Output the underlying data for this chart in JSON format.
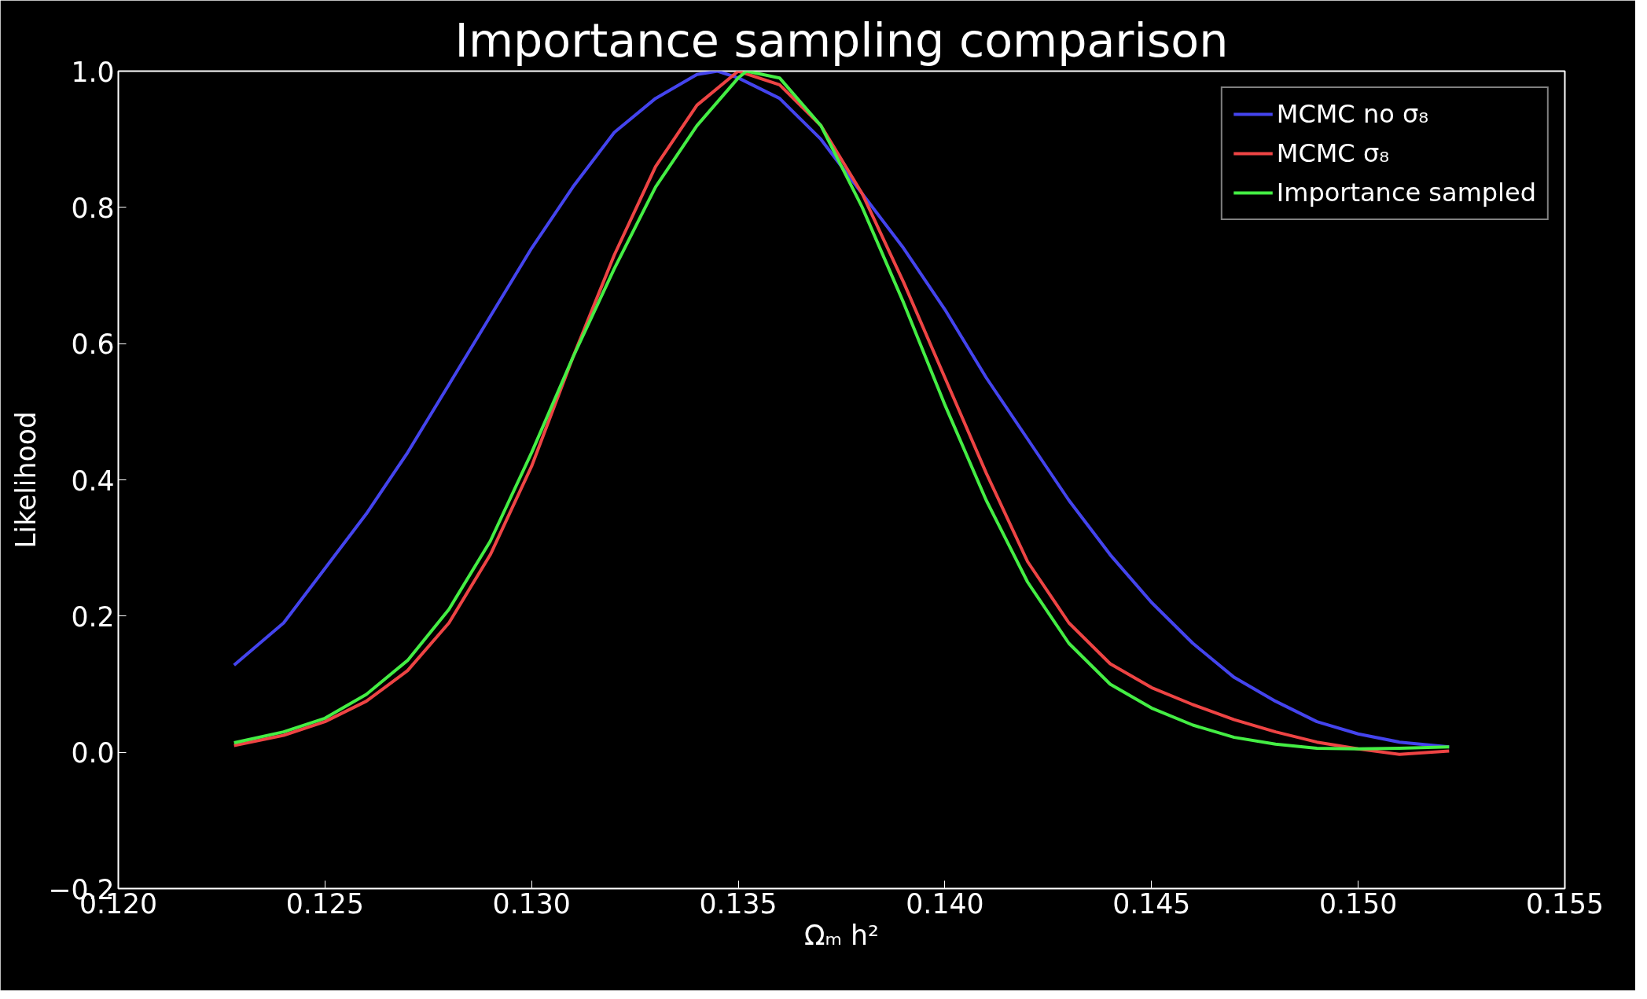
{
  "chart_data": {
    "type": "line",
    "title": "Importance sampling comparison",
    "xlabel": "Ωₘ h²",
    "ylabel": "Likelihood",
    "xlim": [
      0.12,
      0.155
    ],
    "ylim": [
      -0.2,
      1.0
    ],
    "xticks": [
      {
        "value": 0.12,
        "label": "0.120"
      },
      {
        "value": 0.125,
        "label": "0.125"
      },
      {
        "value": 0.13,
        "label": "0.130"
      },
      {
        "value": 0.135,
        "label": "0.135"
      },
      {
        "value": 0.14,
        "label": "0.140"
      },
      {
        "value": 0.145,
        "label": "0.145"
      },
      {
        "value": 0.15,
        "label": "0.150"
      },
      {
        "value": 0.155,
        "label": "0.155"
      }
    ],
    "yticks": [
      {
        "value": -0.2,
        "label": "−0.2"
      },
      {
        "value": 0.0,
        "label": "0.0"
      },
      {
        "value": 0.2,
        "label": "0.2"
      },
      {
        "value": 0.4,
        "label": "0.4"
      },
      {
        "value": 0.6,
        "label": "0.6"
      },
      {
        "value": 0.8,
        "label": "0.8"
      },
      {
        "value": 1.0,
        "label": "1.0"
      }
    ],
    "grid": false,
    "legend": "top right",
    "marker": "none",
    "line_style": "solid",
    "series": [
      {
        "name": "MCMC no σ₈",
        "color": "#4444ee",
        "x": [
          0.1228,
          0.124,
          0.125,
          0.126,
          0.127,
          0.128,
          0.129,
          0.13,
          0.131,
          0.132,
          0.133,
          0.134,
          0.1345,
          0.135,
          0.136,
          0.137,
          0.138,
          0.139,
          0.14,
          0.141,
          0.142,
          0.143,
          0.144,
          0.145,
          0.146,
          0.147,
          0.148,
          0.149,
          0.15,
          0.151,
          0.1522
        ],
        "values": [
          0.128,
          0.19,
          0.27,
          0.35,
          0.44,
          0.54,
          0.64,
          0.74,
          0.83,
          0.91,
          0.96,
          0.995,
          1.0,
          0.99,
          0.96,
          0.9,
          0.82,
          0.74,
          0.65,
          0.55,
          0.46,
          0.37,
          0.29,
          0.22,
          0.16,
          0.11,
          0.075,
          0.045,
          0.027,
          0.015,
          0.008
        ]
      },
      {
        "name": "MCMC σ₈",
        "color": "#ee4444",
        "x": [
          0.1228,
          0.124,
          0.125,
          0.126,
          0.127,
          0.128,
          0.129,
          0.13,
          0.131,
          0.132,
          0.133,
          0.134,
          0.135,
          0.136,
          0.137,
          0.138,
          0.139,
          0.14,
          0.141,
          0.142,
          0.143,
          0.144,
          0.145,
          0.146,
          0.147,
          0.148,
          0.149,
          0.15,
          0.151,
          0.1522
        ],
        "values": [
          0.01,
          0.025,
          0.045,
          0.075,
          0.12,
          0.19,
          0.29,
          0.42,
          0.58,
          0.73,
          0.86,
          0.95,
          1.0,
          0.98,
          0.92,
          0.82,
          0.69,
          0.55,
          0.41,
          0.28,
          0.19,
          0.13,
          0.095,
          0.07,
          0.048,
          0.03,
          0.015,
          0.005,
          -0.003,
          0.002
        ]
      },
      {
        "name": "Importance sampled",
        "color": "#44ee44",
        "x": [
          0.1228,
          0.124,
          0.125,
          0.126,
          0.127,
          0.128,
          0.129,
          0.13,
          0.131,
          0.132,
          0.133,
          0.134,
          0.135,
          0.1352,
          0.136,
          0.137,
          0.138,
          0.139,
          0.14,
          0.141,
          0.142,
          0.143,
          0.144,
          0.145,
          0.146,
          0.147,
          0.148,
          0.149,
          0.15,
          0.151,
          0.1522
        ],
        "values": [
          0.014,
          0.03,
          0.05,
          0.085,
          0.135,
          0.21,
          0.31,
          0.44,
          0.58,
          0.71,
          0.83,
          0.92,
          0.99,
          1.0,
          0.99,
          0.92,
          0.8,
          0.66,
          0.51,
          0.37,
          0.25,
          0.16,
          0.1,
          0.065,
          0.04,
          0.022,
          0.012,
          0.006,
          0.005,
          0.006,
          0.008
        ]
      }
    ]
  }
}
